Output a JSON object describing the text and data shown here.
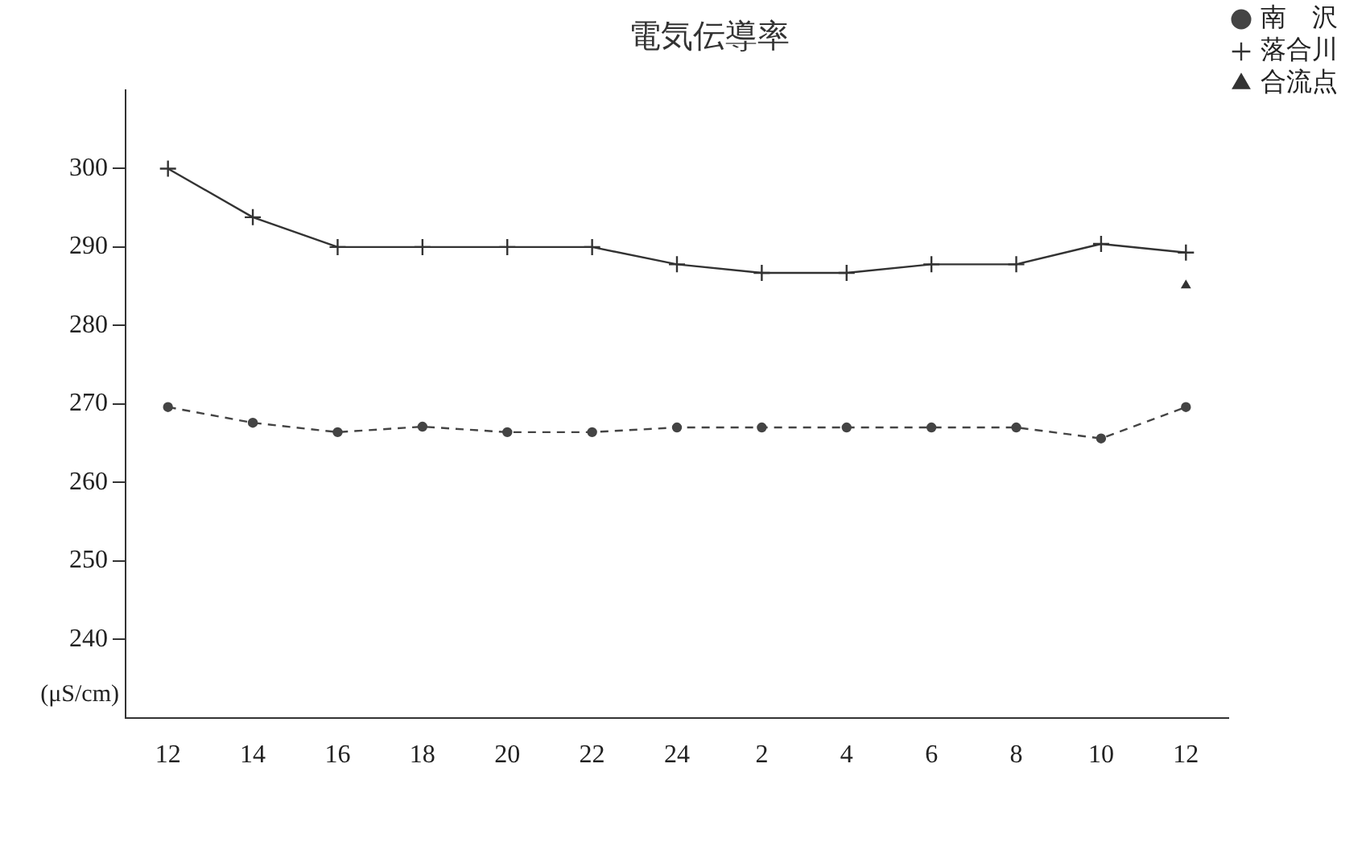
{
  "chart_data": {
    "type": "line",
    "title": "電気伝導率",
    "ylabel": "(μS/cm)",
    "categories": [
      "12",
      "14",
      "16",
      "18",
      "20",
      "22",
      "24",
      "2",
      "4",
      "6",
      "8",
      "10",
      "12"
    ],
    "series": [
      {
        "name": "南　沢",
        "color": "#444444",
        "line_style": "dashed",
        "marker": "circle",
        "values": [
          269.6,
          267.6,
          266.4,
          267.1,
          266.4,
          266.4,
          267,
          267,
          267,
          267,
          267,
          265.6,
          269.6
        ]
      },
      {
        "name": "落合川",
        "color": "#333333",
        "line_style": "solid",
        "marker": "cross",
        "values": [
          300,
          293.8,
          290,
          290,
          290,
          290,
          287.8,
          286.7,
          286.7,
          287.8,
          287.8,
          290.4,
          289.3
        ]
      },
      {
        "name": "合流点",
        "color": "#333333",
        "type": "scatter",
        "marker": "triangle",
        "values": [
          null,
          null,
          null,
          null,
          null,
          null,
          null,
          null,
          null,
          null,
          null,
          null,
          285.1
        ]
      }
    ],
    "ylim": [
      230,
      310
    ],
    "yticks": [
      240,
      250,
      260,
      270,
      280,
      290,
      300
    ],
    "grid": false,
    "legend": "top right"
  }
}
